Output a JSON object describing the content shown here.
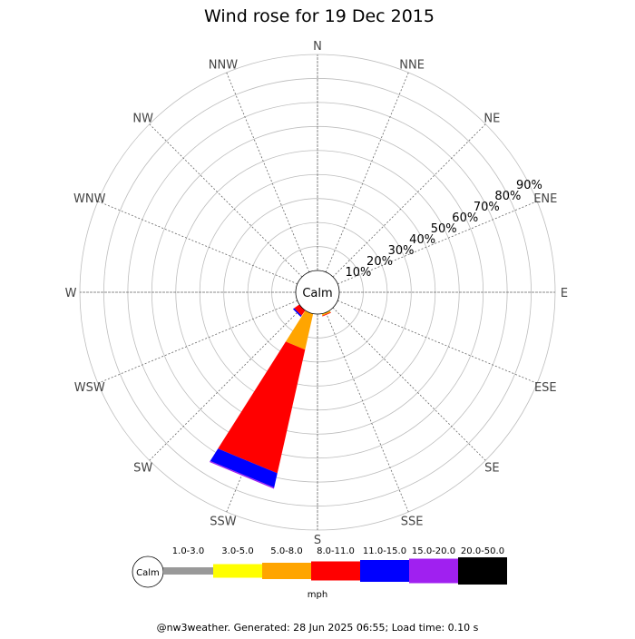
{
  "chart_data": {
    "type": "wind_rose",
    "title": "Wind rose for 19 Dec 2015",
    "calm_label": "Calm",
    "directions": [
      "N",
      "NNE",
      "NE",
      "ENE",
      "E",
      "ESE",
      "SE",
      "SSE",
      "S",
      "SSW",
      "SW",
      "WSW",
      "W",
      "WNW",
      "NW",
      "NNW"
    ],
    "ring_labels": [
      "10%",
      "20%",
      "30%",
      "40%",
      "50%",
      "60%",
      "70%",
      "80%",
      "90%"
    ],
    "ring_max": 90,
    "speed_bins": [
      {
        "label": "1.0-3.0",
        "color": "#999999"
      },
      {
        "label": "3.0-5.0",
        "color": "#ffff00"
      },
      {
        "label": "5.0-8.0",
        "color": "#ffa500"
      },
      {
        "label": "8.0-11.0",
        "color": "#ff0000"
      },
      {
        "label": "11.0-15.0",
        "color": "#0000ff"
      },
      {
        "label": "15.0-20.0",
        "color": "#a020f0"
      },
      {
        "label": "20.0-50.0",
        "color": "#000000"
      }
    ],
    "speed_unit": "mph",
    "petals": [
      {
        "dir": "SSE",
        "segments": [
          {
            "bin": "3.0-5.0",
            "value": 0.2
          },
          {
            "bin": "5.0-8.0",
            "value": 0.5
          },
          {
            "bin": "8.0-11.0",
            "value": 0.3
          }
        ]
      },
      {
        "dir": "SSW",
        "segments": [
          {
            "bin": "5.0-8.0",
            "value": 15
          },
          {
            "bin": "8.0-11.0",
            "value": 52
          },
          {
            "bin": "11.0-15.0",
            "value": 6
          },
          {
            "bin": "15.0-20.0",
            "value": 0.5
          }
        ]
      },
      {
        "dir": "SW",
        "segments": [
          {
            "bin": "8.0-11.0",
            "value": 2.5
          },
          {
            "bin": "11.0-15.0",
            "value": 0.6
          }
        ]
      }
    ]
  },
  "footer": "@nw3weather. Generated: 28 Jun 2025 06:55; Load time: 0.10 s"
}
